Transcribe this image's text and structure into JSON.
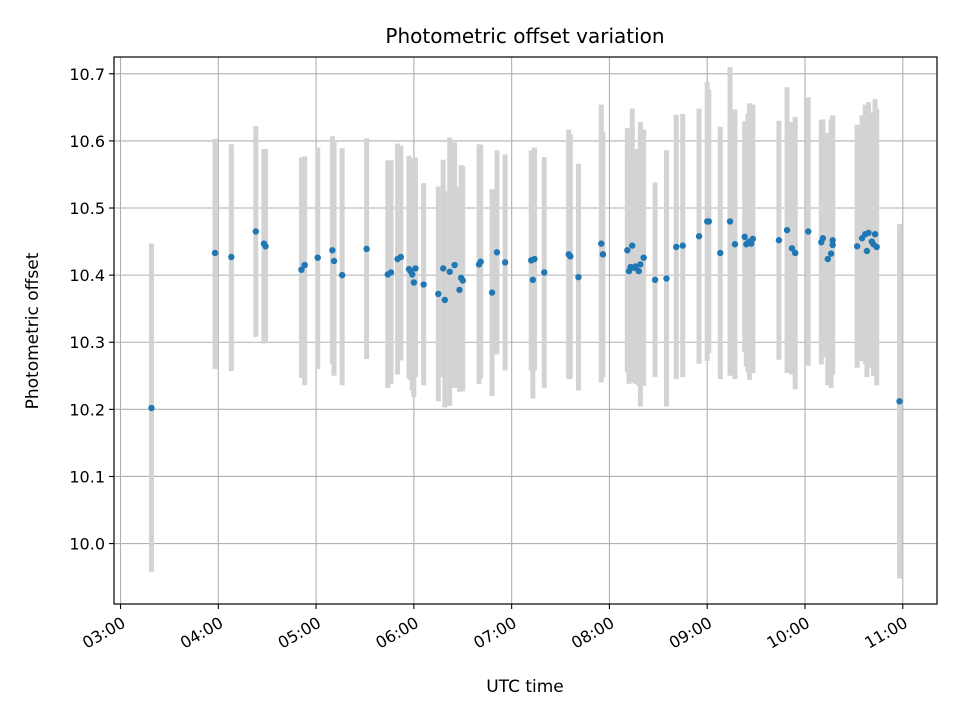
{
  "chart_data": {
    "type": "scatter",
    "title": "Photometric offset variation",
    "xlabel": "UTC time",
    "ylabel": "Photometric offset",
    "xlim": [
      "02:56",
      "11:21"
    ],
    "ylim": [
      9.91,
      10.725
    ],
    "grid": true,
    "x_tick_labels": [
      "03:00",
      "04:00",
      "05:00",
      "06:00",
      "07:00",
      "08:00",
      "09:00",
      "10:00",
      "11:00"
    ],
    "y_tick_labels": [
      "10.0",
      "10.1",
      "10.2",
      "10.3",
      "10.4",
      "10.5",
      "10.6",
      "10.7"
    ],
    "colors": {
      "marker": "#1f77b4",
      "errorbar": "#d3d3d3",
      "grid": "#b0b0b0"
    },
    "series": [
      {
        "marker": "point",
        "x": [
          "03:19",
          "03:58",
          "04:08",
          "04:23",
          "04:28",
          "04:29",
          "04:51",
          "04:53",
          "05:01",
          "05:10",
          "05:11",
          "05:16",
          "05:31",
          "05:44",
          "05:46",
          "05:50",
          "05:52",
          "05:57",
          "05:58",
          "05:59",
          "06:00",
          "06:01",
          "06:06",
          "06:15",
          "06:18",
          "06:19",
          "06:22",
          "06:25",
          "06:28",
          "06:29",
          "06:30",
          "06:40",
          "06:41",
          "06:48",
          "06:51",
          "06:56",
          "07:12",
          "07:13",
          "07:14",
          "07:20",
          "07:35",
          "07:36",
          "07:41",
          "07:55",
          "07:56",
          "08:11",
          "08:12",
          "08:13",
          "08:14",
          "08:15",
          "08:16",
          "08:18",
          "08:19",
          "08:21",
          "08:28",
          "08:35",
          "08:41",
          "08:45",
          "08:55",
          "09:00",
          "09:01",
          "09:08",
          "09:14",
          "09:17",
          "09:23",
          "09:24",
          "09:25",
          "09:26",
          "09:27",
          "09:28",
          "09:44",
          "09:49",
          "09:52",
          "09:54",
          "10:02",
          "10:10",
          "10:11",
          "10:14",
          "10:16",
          "10:17",
          "10:17",
          "10:32",
          "10:35",
          "10:37",
          "10:38",
          "10:39",
          "10:41",
          "10:42",
          "10:43",
          "10:44",
          "10:58"
        ],
        "y": [
          10.202,
          10.433,
          10.427,
          10.465,
          10.447,
          10.443,
          10.408,
          10.415,
          10.426,
          10.437,
          10.421,
          10.4,
          10.439,
          10.401,
          10.404,
          10.424,
          10.427,
          10.409,
          10.406,
          10.401,
          10.389,
          10.41,
          10.386,
          10.372,
          10.41,
          10.363,
          10.405,
          10.415,
          10.378,
          10.396,
          10.392,
          10.416,
          10.42,
          10.374,
          10.434,
          10.419,
          10.422,
          10.393,
          10.424,
          10.404,
          10.431,
          10.428,
          10.397,
          10.447,
          10.431,
          10.437,
          10.406,
          10.412,
          10.444,
          10.411,
          10.413,
          10.406,
          10.416,
          10.426,
          10.393,
          10.395,
          10.442,
          10.444,
          10.458,
          10.48,
          10.48,
          10.433,
          10.48,
          10.446,
          10.457,
          10.446,
          10.448,
          10.45,
          10.447,
          10.454,
          10.452,
          10.467,
          10.44,
          10.433,
          10.465,
          10.449,
          10.455,
          10.424,
          10.432,
          10.452,
          10.445,
          10.443,
          10.455,
          10.461,
          10.436,
          10.463,
          10.45,
          10.446,
          10.461,
          10.442,
          10.212
        ],
        "yerr_low": [
          9.958,
          10.26,
          10.257,
          10.308,
          10.298,
          10.3,
          10.247,
          10.236,
          10.26,
          10.268,
          10.25,
          10.236,
          10.275,
          10.232,
          10.238,
          10.252,
          10.273,
          10.246,
          10.244,
          10.228,
          10.218,
          10.248,
          10.236,
          10.212,
          10.248,
          10.203,
          10.205,
          10.232,
          10.226,
          10.232,
          10.227,
          10.238,
          10.246,
          10.22,
          10.282,
          10.258,
          10.258,
          10.216,
          10.258,
          10.232,
          10.245,
          10.246,
          10.228,
          10.24,
          10.248,
          10.255,
          10.238,
          10.248,
          10.24,
          10.252,
          10.238,
          10.235,
          10.204,
          10.235,
          10.248,
          10.204,
          10.245,
          10.248,
          10.268,
          10.272,
          10.284,
          10.245,
          10.25,
          10.245,
          10.285,
          10.264,
          10.255,
          10.244,
          10.26,
          10.254,
          10.274,
          10.254,
          10.252,
          10.23,
          10.265,
          10.267,
          10.278,
          10.236,
          10.232,
          10.268,
          10.252,
          10.262,
          10.272,
          10.268,
          10.248,
          10.268,
          10.262,
          10.25,
          10.26,
          10.236,
          9.948
        ],
        "yerr_high": [
          10.447,
          10.603,
          10.595,
          10.622,
          10.588,
          10.588,
          10.575,
          10.577,
          10.59,
          10.607,
          10.601,
          10.589,
          10.604,
          10.571,
          10.571,
          10.596,
          10.593,
          10.578,
          10.569,
          10.574,
          10.558,
          10.575,
          10.537,
          10.532,
          10.572,
          10.525,
          10.605,
          10.598,
          10.531,
          10.564,
          10.562,
          10.595,
          10.594,
          10.528,
          10.586,
          10.58,
          10.586,
          10.57,
          10.59,
          10.576,
          10.617,
          10.61,
          10.566,
          10.654,
          10.614,
          10.619,
          10.574,
          10.576,
          10.648,
          10.57,
          10.588,
          10.577,
          10.628,
          10.617,
          10.538,
          10.586,
          10.639,
          10.64,
          10.648,
          10.688,
          10.676,
          10.621,
          10.71,
          10.647,
          10.629,
          10.628,
          10.641,
          10.656,
          10.634,
          10.654,
          10.63,
          10.68,
          10.628,
          10.636,
          10.665,
          10.631,
          10.632,
          10.612,
          10.632,
          10.636,
          10.638,
          10.624,
          10.638,
          10.654,
          10.624,
          10.658,
          10.64,
          10.642,
          10.662,
          10.648,
          10.476
        ]
      }
    ]
  }
}
